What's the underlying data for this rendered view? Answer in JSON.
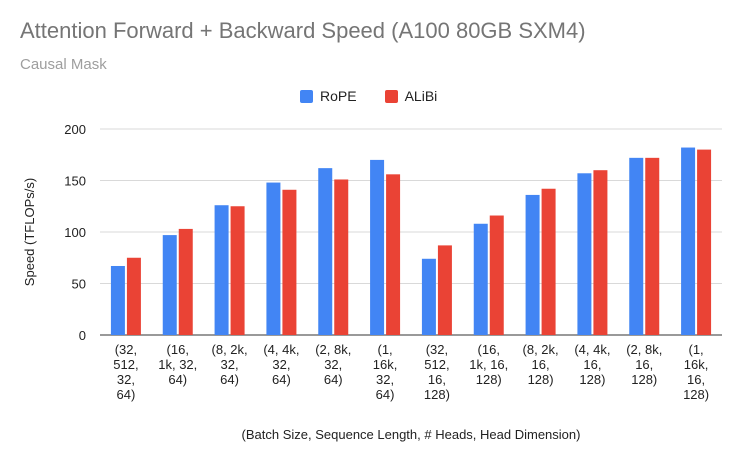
{
  "chart_data": {
    "type": "bar",
    "title": "Attention Forward + Backward Speed (A100 80GB SXM4)",
    "subtitle": "Causal Mask",
    "xlabel": "(Batch Size, Sequence Length, # Heads, Head Dimension)",
    "ylabel": "Speed (TFLOPs/s)",
    "ylim": [
      0,
      200
    ],
    "yticks": [
      0,
      50,
      100,
      150,
      200
    ],
    "grid": true,
    "legend_position": "top",
    "categories": [
      [
        "(32,",
        "512,",
        "32,",
        "64)"
      ],
      [
        "(16,",
        "1k, 32,",
        "64)"
      ],
      [
        "(8, 2k,",
        "32,",
        "64)"
      ],
      [
        "(4, 4k,",
        "32,",
        "64)"
      ],
      [
        "(2, 8k,",
        "32,",
        "64)"
      ],
      [
        "(1,",
        "16k,",
        "32,",
        "64)"
      ],
      [
        "(32,",
        "512,",
        "16,",
        "128)"
      ],
      [
        "(16,",
        "1k, 16,",
        "128)"
      ],
      [
        "(8, 2k,",
        "16,",
        "128)"
      ],
      [
        "(4, 4k,",
        "16,",
        "128)"
      ],
      [
        "(2, 8k,",
        "16,",
        "128)"
      ],
      [
        "(1,",
        "16k,",
        "16,",
        "128)"
      ]
    ],
    "series": [
      {
        "name": "RoPE",
        "color": "#4285f4",
        "values": [
          67,
          97,
          126,
          148,
          162,
          170,
          74,
          108,
          136,
          157,
          172,
          182
        ]
      },
      {
        "name": "ALiBi",
        "color": "#ea4335",
        "values": [
          75,
          103,
          125,
          141,
          151,
          156,
          87,
          116,
          142,
          160,
          172,
          180
        ]
      }
    ]
  }
}
